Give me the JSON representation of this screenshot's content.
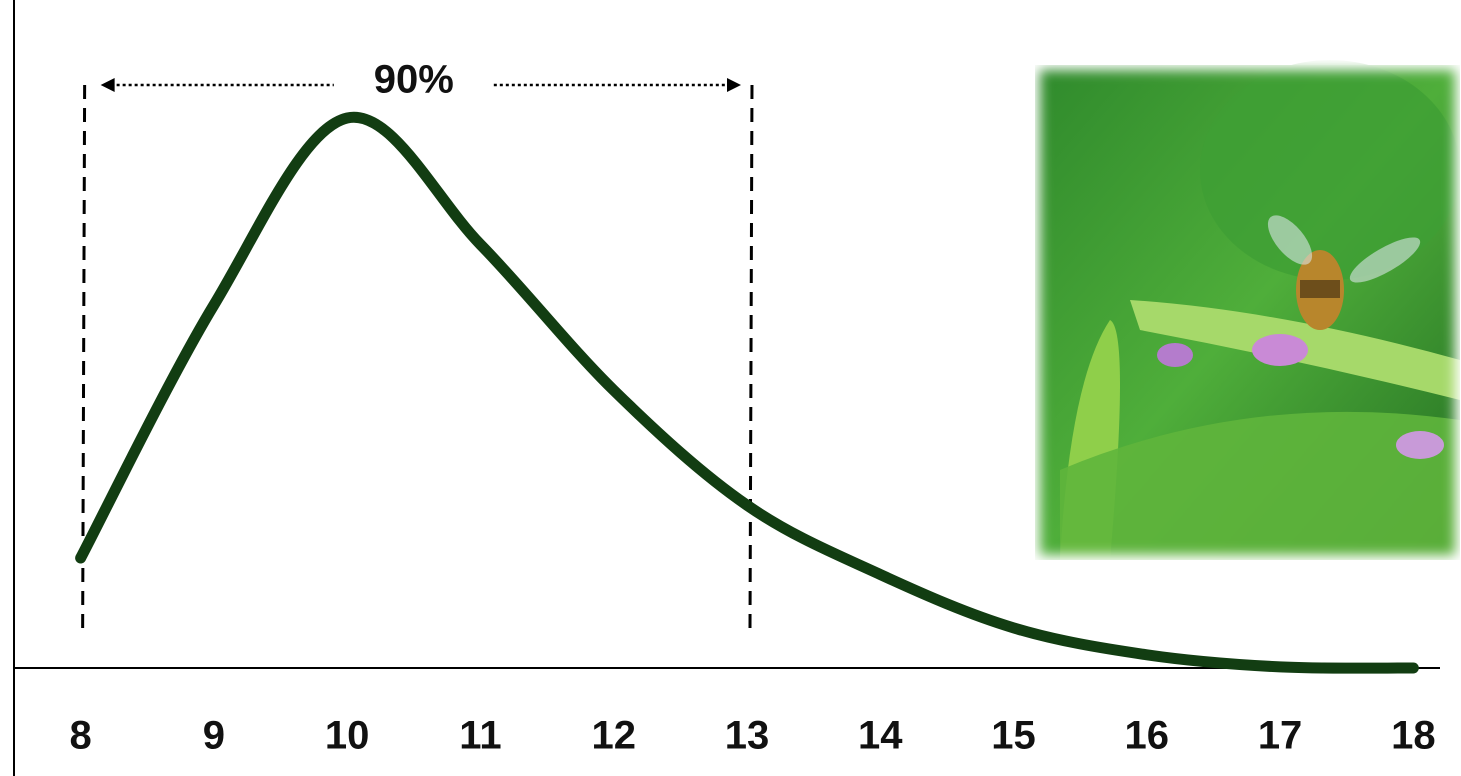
{
  "chart_data": {
    "type": "line",
    "x": [
      8,
      9,
      10,
      11,
      12,
      13,
      14,
      15,
      16,
      17,
      18
    ],
    "series": [
      {
        "color": "#123d12",
        "values": [
          20,
          66,
          100,
          77,
          50.5,
          29.6,
          17,
          7.3,
          2.4,
          0.2,
          0
        ]
      }
    ],
    "xlim": [
      7.5,
      18.2
    ],
    "xticks": [
      8,
      9,
      10,
      11,
      12,
      13,
      14,
      15,
      16,
      17,
      18
    ],
    "ylim": [
      0,
      120
    ],
    "annotation": {
      "text": "90%",
      "x_range": [
        8,
        13
      ]
    }
  }
}
